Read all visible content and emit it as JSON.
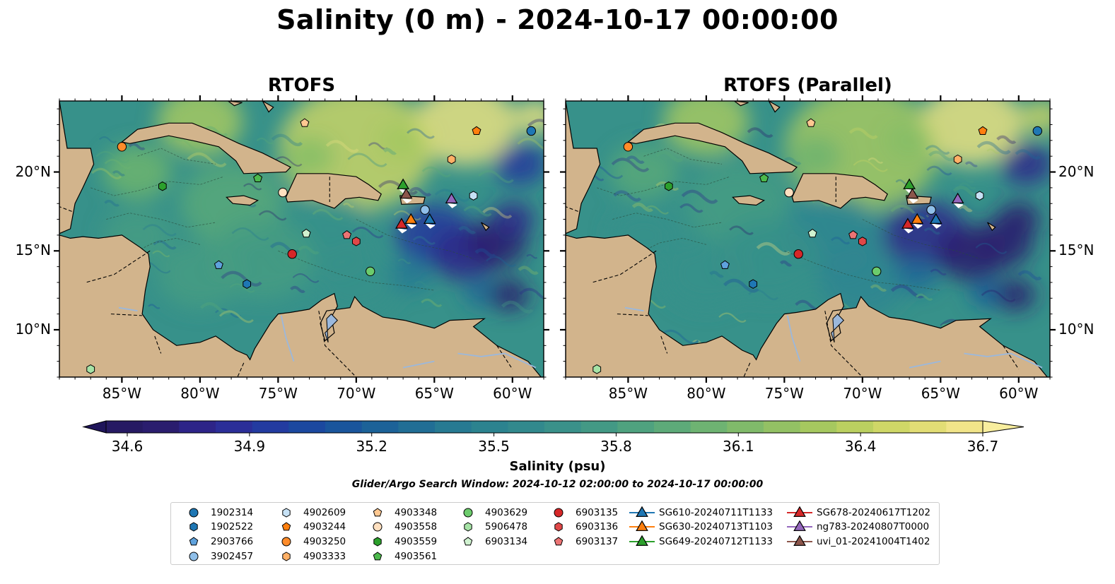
{
  "title": "Salinity (0 m) - 2024-10-17 00:00:00",
  "panels": [
    {
      "title": "RTOFS"
    },
    {
      "title": "RTOFS (Parallel)"
    }
  ],
  "axes": {
    "lon_ticks": [
      "85°W",
      "80°W",
      "75°W",
      "70°W",
      "65°W",
      "60°W"
    ],
    "lat_ticks": [
      "20°N",
      "15°N",
      "10°N"
    ],
    "lon_range": [
      -89,
      -58
    ],
    "lat_range": [
      7,
      24.5
    ]
  },
  "colorbar": {
    "label": "Salinity (psu)",
    "ticks": [
      "34.6",
      "34.9",
      "35.2",
      "35.5",
      "35.8",
      "36.1",
      "36.4",
      "36.7"
    ],
    "range": [
      34.6,
      36.7
    ],
    "extend": "both",
    "colormap": "haline"
  },
  "search_window": "Glider/Argo Search Window: 2024-10-12 02:00:00 to 2024-10-17 00:00:00",
  "colors": {
    "land": "#d2b48c",
    "lake": "#9bb8dc",
    "ocean_low": "#2a1d6e",
    "ocean_mid": "#2f8a8c",
    "ocean_high": "#f0e68c"
  },
  "legend": [
    {
      "label": "1902314",
      "marker": "circle",
      "color": "#1f77b4"
    },
    {
      "label": "1902522",
      "marker": "hexagon",
      "color": "#1f77b4"
    },
    {
      "label": "2903766",
      "marker": "pentagon",
      "color": "#5fa2dd"
    },
    {
      "label": "3902457",
      "marker": "circle",
      "color": "#8fbfe9"
    },
    {
      "label": "4902609",
      "marker": "hexagon",
      "color": "#c6e1f5"
    },
    {
      "label": "4903244",
      "marker": "pentagon",
      "color": "#ff7f0e"
    },
    {
      "label": "4903250",
      "marker": "circle",
      "color": "#ff8c2a"
    },
    {
      "label": "4903333",
      "marker": "hexagon",
      "color": "#ffb066"
    },
    {
      "label": "4903348",
      "marker": "pentagon",
      "color": "#ffc891"
    },
    {
      "label": "4903558",
      "marker": "circle",
      "color": "#ffe0c0"
    },
    {
      "label": "4903559",
      "marker": "hexagon",
      "color": "#2ca02c"
    },
    {
      "label": "4903561",
      "marker": "pentagon",
      "color": "#4cb94c"
    },
    {
      "label": "4903629",
      "marker": "circle",
      "color": "#6ccc6c"
    },
    {
      "label": "5906478",
      "marker": "hexagon",
      "color": "#a6e3a6"
    },
    {
      "label": "6903134",
      "marker": "pentagon",
      "color": "#d0f2d0"
    },
    {
      "label": "6903135",
      "marker": "circle",
      "color": "#d62728"
    },
    {
      "label": "6903136",
      "marker": "hexagon",
      "color": "#e04848"
    },
    {
      "label": "6903137",
      "marker": "pentagon",
      "color": "#ec7474"
    },
    {
      "label": "SG610-20240711T1133",
      "marker": "triangle",
      "color": "#1f77b4"
    },
    {
      "label": "SG630-20240713T1103",
      "marker": "triangle",
      "color": "#ff7f0e"
    },
    {
      "label": "SG649-20240712T1133",
      "marker": "triangle",
      "color": "#2ca02c"
    },
    {
      "label": "SG678-20240617T1202",
      "marker": "triangle",
      "color": "#d62728"
    },
    {
      "label": "ng783-20240807T0000",
      "marker": "triangle",
      "color": "#9467bd"
    },
    {
      "label": "uvi_01-20241004T1402",
      "marker": "triangle",
      "color": "#8c564b"
    }
  ],
  "argo_positions": [
    {
      "id": "1902314",
      "lon": -58.8,
      "lat": 22.6
    },
    {
      "id": "1902522",
      "lon": -77.0,
      "lat": 12.9
    },
    {
      "id": "2903766",
      "lon": -78.8,
      "lat": 14.1
    },
    {
      "id": "3902457",
      "lon": -65.6,
      "lat": 17.6
    },
    {
      "id": "4902609",
      "lon": -62.5,
      "lat": 18.5
    },
    {
      "id": "4903244",
      "lon": -62.3,
      "lat": 22.6
    },
    {
      "id": "4903250",
      "lon": -85.0,
      "lat": 21.6
    },
    {
      "id": "4903333",
      "lon": -63.9,
      "lat": 20.8
    },
    {
      "id": "4903348",
      "lon": -73.3,
      "lat": 23.1
    },
    {
      "id": "4903558",
      "lon": -74.7,
      "lat": 18.7
    },
    {
      "id": "4903559",
      "lon": -82.4,
      "lat": 19.1
    },
    {
      "id": "4903561",
      "lon": -76.3,
      "lat": 19.6
    },
    {
      "id": "4903629",
      "lon": -69.1,
      "lat": 13.7
    },
    {
      "id": "5906478",
      "lon": -87.0,
      "lat": 7.5
    },
    {
      "id": "6903134",
      "lon": -73.2,
      "lat": 16.1
    },
    {
      "id": "6903135",
      "lon": -74.1,
      "lat": 14.8
    },
    {
      "id": "6903136",
      "lon": -70.0,
      "lat": 15.6
    },
    {
      "id": "6903137",
      "lon": -70.6,
      "lat": 16.0
    }
  ],
  "glider_positions": [
    {
      "id": "SG610-20240711T1133",
      "lon": -65.3,
      "lat": 17.0
    },
    {
      "id": "SG630-20240713T1103",
      "lon": -66.5,
      "lat": 17.0
    },
    {
      "id": "SG649-20240712T1133",
      "lon": -67.0,
      "lat": 19.2
    },
    {
      "id": "SG678-20240617T1202",
      "lon": -67.1,
      "lat": 16.7
    },
    {
      "id": "ng783-20240807T0000",
      "lon": -63.9,
      "lat": 18.3
    },
    {
      "id": "uvi_01-20241004T1402",
      "lon": -66.8,
      "lat": 18.6
    }
  ]
}
